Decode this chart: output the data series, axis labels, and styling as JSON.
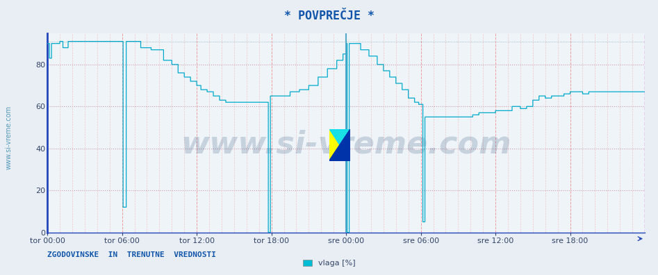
{
  "title": "* POVPREČJE *",
  "watermark": "www.si-vreme.com",
  "bottom_left_text": "ZGODOVINSKE  IN  TRENUTNE  VREDNOSTI",
  "legend_label": "vlaga [%]",
  "legend_color": "#00bcd4",
  "line_color": "#00aacc",
  "bg_color": "#e8eef4",
  "plot_bg_color": "#eef4f8",
  "title_color": "#1155aa",
  "watermark_color": "#1a3a6e",
  "bottom_text_color": "#1155aa",
  "ylim": [
    0,
    95
  ],
  "yticks": [
    0,
    20,
    40,
    60,
    80
  ],
  "x_tick_labels": [
    "tor 00:00",
    "tor 06:00",
    "tor 12:00",
    "tor 18:00",
    "sre 00:00",
    "sre 06:00",
    "sre 12:00",
    "sre 18:00"
  ],
  "x_tick_positions": [
    0,
    72,
    144,
    216,
    288,
    360,
    432,
    504
  ],
  "n_points": 577,
  "hgrid_color": "#cc99aa",
  "vgrid_major_color": "#ee8888",
  "vgrid_minor_color": "#f0bbbb",
  "day_sep_color": "#55aacc",
  "right_border_color": "#cc44cc",
  "left_spine_color": "#2244bb",
  "bottom_spine_color": "#2244bb"
}
